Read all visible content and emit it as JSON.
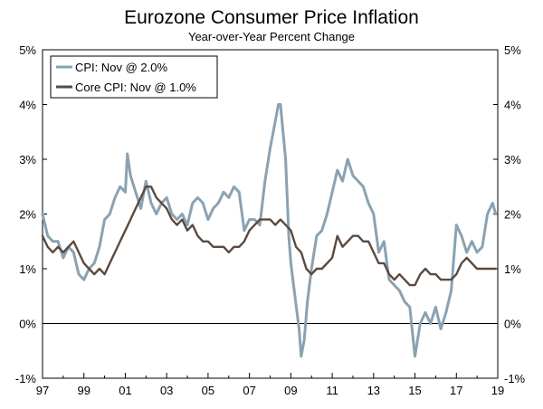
{
  "chart_data": {
    "type": "line",
    "title": "Eurozone Consumer Price Inflation",
    "subtitle": "Year-over-Year Percent Change",
    "xlabel": "",
    "ylabel": "",
    "x_range": [
      1997,
      2019
    ],
    "xticks": [
      1997,
      1999,
      2001,
      2003,
      2005,
      2007,
      2009,
      2011,
      2013,
      2015,
      2017,
      2019
    ],
    "xtick_labels": [
      "97",
      "99",
      "01",
      "03",
      "05",
      "07",
      "09",
      "11",
      "13",
      "15",
      "17",
      "19"
    ],
    "ylim": [
      -1,
      5
    ],
    "yticks": [
      -1,
      0,
      1,
      2,
      3,
      4,
      5
    ],
    "ytick_labels": [
      "-1%",
      "0%",
      "1%",
      "2%",
      "3%",
      "4%",
      "5%"
    ],
    "grid": false,
    "legend": "top-left",
    "series": [
      {
        "name": "CPI: Nov @ 2.0%",
        "color": "#8aa2b2",
        "x": [
          1997.0,
          1997.25,
          1997.5,
          1997.75,
          1998.0,
          1998.25,
          1998.5,
          1998.75,
          1999.0,
          1999.25,
          1999.5,
          1999.75,
          2000.0,
          2000.25,
          2000.5,
          2000.75,
          2001.0,
          2001.1,
          2001.25,
          2001.5,
          2001.75,
          2002.0,
          2002.25,
          2002.5,
          2002.75,
          2003.0,
          2003.25,
          2003.5,
          2003.75,
          2004.0,
          2004.25,
          2004.5,
          2004.75,
          2005.0,
          2005.25,
          2005.5,
          2005.75,
          2006.0,
          2006.25,
          2006.5,
          2006.75,
          2007.0,
          2007.25,
          2007.5,
          2007.75,
          2008.0,
          2008.2,
          2008.4,
          2008.5,
          2008.75,
          2008.9,
          2009.0,
          2009.2,
          2009.4,
          2009.5,
          2009.65,
          2009.8,
          2010.0,
          2010.25,
          2010.5,
          2010.75,
          2011.0,
          2011.25,
          2011.5,
          2011.75,
          2012.0,
          2012.25,
          2012.5,
          2012.75,
          2013.0,
          2013.25,
          2013.5,
          2013.75,
          2014.0,
          2014.25,
          2014.5,
          2014.75,
          2015.0,
          2015.25,
          2015.5,
          2015.75,
          2016.0,
          2016.25,
          2016.5,
          2016.75,
          2017.0,
          2017.25,
          2017.5,
          2017.75,
          2018.0,
          2018.25,
          2018.5,
          2018.75,
          2018.9
        ],
        "values": [
          2.0,
          1.6,
          1.5,
          1.5,
          1.2,
          1.4,
          1.3,
          0.9,
          0.8,
          1.0,
          1.1,
          1.4,
          1.9,
          2.0,
          2.3,
          2.5,
          2.4,
          3.1,
          2.7,
          2.4,
          2.1,
          2.6,
          2.2,
          2.0,
          2.2,
          2.3,
          2.0,
          1.9,
          2.0,
          1.8,
          2.2,
          2.3,
          2.2,
          1.9,
          2.1,
          2.2,
          2.4,
          2.3,
          2.5,
          2.4,
          1.7,
          1.9,
          1.9,
          1.8,
          2.6,
          3.2,
          3.6,
          4.0,
          4.0,
          3.0,
          1.6,
          1.1,
          0.5,
          -0.1,
          -0.6,
          -0.3,
          0.4,
          1.0,
          1.6,
          1.7,
          2.0,
          2.4,
          2.8,
          2.6,
          3.0,
          2.7,
          2.6,
          2.5,
          2.2,
          2.0,
          1.3,
          1.5,
          0.8,
          0.7,
          0.6,
          0.4,
          0.3,
          -0.6,
          0.0,
          0.2,
          0.0,
          0.3,
          -0.1,
          0.2,
          0.6,
          1.8,
          1.6,
          1.3,
          1.5,
          1.3,
          1.4,
          2.0,
          2.2,
          2.0
        ]
      },
      {
        "name": "Core CPI: Nov @ 1.0%",
        "color": "#5a4a40",
        "x": [
          1997.0,
          1997.25,
          1997.5,
          1997.75,
          1998.0,
          1998.25,
          1998.5,
          1998.75,
          1999.0,
          1999.25,
          1999.5,
          1999.75,
          2000.0,
          2000.25,
          2000.5,
          2000.75,
          2001.0,
          2001.25,
          2001.5,
          2001.75,
          2002.0,
          2002.25,
          2002.5,
          2002.75,
          2003.0,
          2003.25,
          2003.5,
          2003.75,
          2004.0,
          2004.25,
          2004.5,
          2004.75,
          2005.0,
          2005.25,
          2005.5,
          2005.75,
          2006.0,
          2006.25,
          2006.5,
          2006.75,
          2007.0,
          2007.25,
          2007.5,
          2007.75,
          2008.0,
          2008.25,
          2008.5,
          2008.75,
          2009.0,
          2009.25,
          2009.5,
          2009.75,
          2010.0,
          2010.25,
          2010.5,
          2010.75,
          2011.0,
          2011.25,
          2011.5,
          2011.75,
          2012.0,
          2012.25,
          2012.5,
          2012.75,
          2013.0,
          2013.25,
          2013.5,
          2013.75,
          2014.0,
          2014.25,
          2014.5,
          2014.75,
          2015.0,
          2015.25,
          2015.5,
          2015.75,
          2016.0,
          2016.25,
          2016.5,
          2016.75,
          2017.0,
          2017.25,
          2017.5,
          2017.75,
          2018.0,
          2018.25,
          2018.5,
          2018.75,
          2018.9
        ],
        "values": [
          1.6,
          1.4,
          1.3,
          1.4,
          1.3,
          1.4,
          1.5,
          1.3,
          1.1,
          1.0,
          0.9,
          1.0,
          0.9,
          1.1,
          1.3,
          1.5,
          1.7,
          1.9,
          2.1,
          2.3,
          2.5,
          2.5,
          2.3,
          2.2,
          2.1,
          1.9,
          1.8,
          1.9,
          1.7,
          1.8,
          1.6,
          1.5,
          1.5,
          1.4,
          1.4,
          1.4,
          1.3,
          1.4,
          1.4,
          1.5,
          1.7,
          1.8,
          1.9,
          1.9,
          1.9,
          1.8,
          1.9,
          1.8,
          1.7,
          1.4,
          1.3,
          1.0,
          0.9,
          1.0,
          1.0,
          1.1,
          1.2,
          1.6,
          1.4,
          1.5,
          1.6,
          1.6,
          1.5,
          1.5,
          1.3,
          1.1,
          1.1,
          0.9,
          0.8,
          0.9,
          0.8,
          0.7,
          0.7,
          0.9,
          1.0,
          0.9,
          0.9,
          0.8,
          0.8,
          0.8,
          0.9,
          1.1,
          1.2,
          1.1,
          1.0,
          1.0,
          1.0,
          1.0,
          1.0
        ]
      }
    ]
  }
}
